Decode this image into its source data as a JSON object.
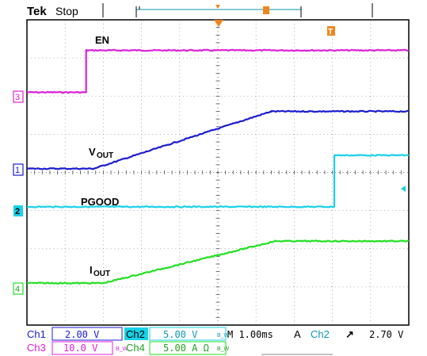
{
  "header": {
    "brand": "Tek",
    "run_state": "Stop",
    "trigger_marker_label": "T"
  },
  "labels": {
    "en": "EN",
    "vout_main": "V",
    "vout_sub": "OUT",
    "pgood": "PGOOD",
    "iout_main": "I",
    "iout_sub": "OUT"
  },
  "channel_markers": {
    "ch3": "3",
    "ch1": "1",
    "ch2": "2",
    "ch4": "4"
  },
  "readout": {
    "ch1_name": "Ch1",
    "ch1_scale": "2.00 V",
    "ch2_name": "Ch2",
    "ch2_scale": "5.00 V",
    "ch2_bw": "B_W",
    "timebase": "M 1.00ms",
    "trigger_mode": "A",
    "trigger_source": "Ch2",
    "trigger_slope": "↗",
    "trigger_level": "2.70 V",
    "ch3_name": "Ch3",
    "ch3_scale": "10.0 V",
    "ch3_bw": "B_W",
    "ch4_name": "Ch4",
    "ch4_scale": "5.00 A Ω",
    "ch4_bw": "B_W"
  },
  "colors": {
    "ch1": "#1c1cd0",
    "ch2": "#18d2e8",
    "ch3": "#e020d8",
    "ch4": "#22e022",
    "trigger": "#f0861e",
    "frame": "#000000",
    "grid": "#9a9a9a"
  },
  "chart_data": {
    "type": "line",
    "x_divisions": 10,
    "y_divisions": 8,
    "time_per_div": "1.00ms",
    "series": [
      {
        "name": "EN",
        "channel": "Ch3",
        "color": "#e020d8",
        "x": [
          0,
          1.55,
          1.55,
          10
        ],
        "y": [
          6.1,
          6.1,
          7.2,
          7.2
        ]
      },
      {
        "name": "VOUT",
        "channel": "Ch1",
        "color": "#1c1cd0",
        "x": [
          0,
          1.75,
          6.4,
          10
        ],
        "y": [
          4.1,
          4.1,
          5.6,
          5.6
        ]
      },
      {
        "name": "PGOOD",
        "channel": "Ch2",
        "color": "#18d2e8",
        "x": [
          0,
          8.05,
          8.05,
          10
        ],
        "y": [
          3.1,
          3.1,
          4.45,
          4.45
        ]
      },
      {
        "name": "IOUT",
        "channel": "Ch4",
        "color": "#22e022",
        "x": [
          0,
          2.0,
          6.5,
          10
        ],
        "y": [
          1.1,
          1.1,
          2.2,
          2.2
        ]
      }
    ]
  }
}
